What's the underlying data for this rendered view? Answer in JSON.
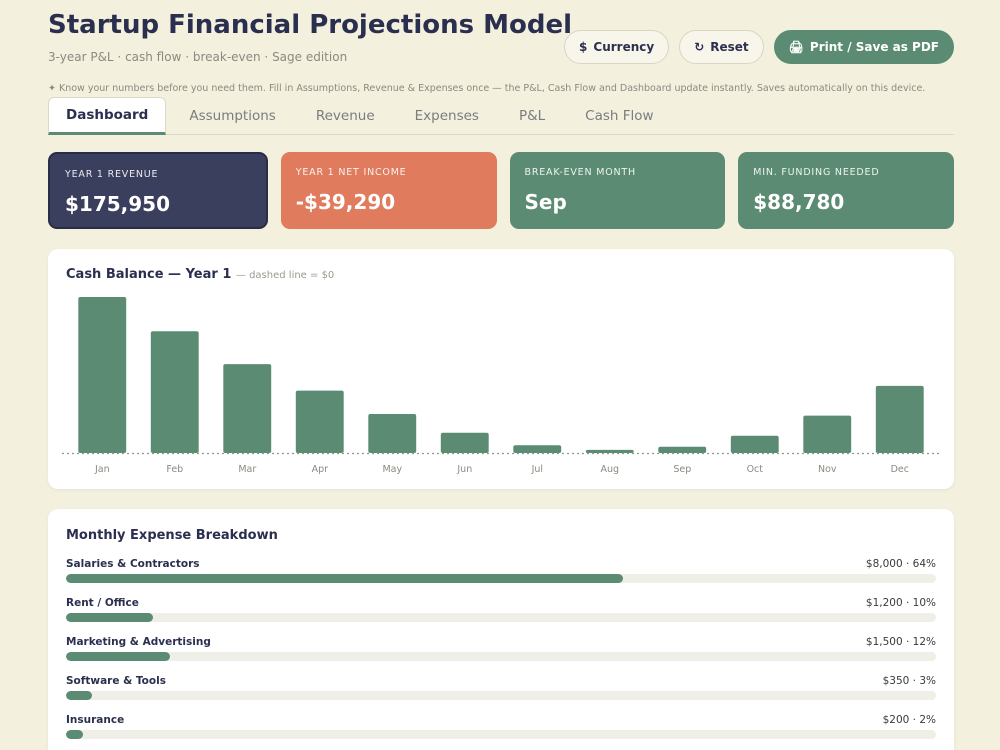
{
  "header": {
    "title": "Startup Financial Projections Model",
    "subtitle": "3-year P&L · cash flow · break-even  ·  Sage edition",
    "tagline": "✦ Know your numbers before you need them. Fill in Assumptions, Revenue & Expenses once — the P&L, Cash Flow and Dashboard update instantly. Saves automatically on this device."
  },
  "toolbar": {
    "currency_label": "Currency",
    "currency_icon": "$",
    "reset_label": "Reset",
    "reset_icon": "↻",
    "print_label": "Print / Save as PDF",
    "print_icon": "🖨"
  },
  "tabs": [
    {
      "label": "Dashboard",
      "active": true
    },
    {
      "label": "Assumptions"
    },
    {
      "label": "Revenue"
    },
    {
      "label": "Expenses"
    },
    {
      "label": "P&L"
    },
    {
      "label": "Cash Flow"
    }
  ],
  "kpis": [
    {
      "label": "YEAR 1 REVENUE",
      "value": "$175,950"
    },
    {
      "label": "YEAR 1 NET INCOME",
      "value": "-$39,290"
    },
    {
      "label": "BREAK-EVEN MONTH",
      "value": "Sep"
    },
    {
      "label": "MIN. FUNDING NEEDED",
      "value": "$88,780"
    }
  ],
  "chart_data": {
    "type": "bar",
    "title": "Cash Balance — Year 1",
    "note": "— dashed line = $0",
    "categories": [
      "Jan",
      "Feb",
      "Mar",
      "Apr",
      "May",
      "Jun",
      "Jul",
      "Aug",
      "Sep",
      "Oct",
      "Nov",
      "Dec"
    ],
    "values": [
      100,
      78,
      57,
      40,
      25,
      13,
      5,
      2,
      4,
      11,
      24,
      43
    ],
    "ylim": [
      0,
      100
    ],
    "grid": false,
    "bar_color": "#5b8c73"
  },
  "expenses": {
    "title": "Monthly Expense Breakdown",
    "items": [
      {
        "name": "Salaries & Contractors",
        "amount": "$8,000 · 64%",
        "pct": 64
      },
      {
        "name": "Rent / Office",
        "amount": "$1,200 · 10%",
        "pct": 10
      },
      {
        "name": "Marketing & Advertising",
        "amount": "$1,500 · 12%",
        "pct": 12
      },
      {
        "name": "Software & Tools",
        "amount": "$350 · 3%",
        "pct": 3
      },
      {
        "name": "Insurance",
        "amount": "$200 · 2%",
        "pct": 2
      }
    ]
  },
  "colors": {
    "navy": "#3b3f5e",
    "coral": "#e07b5d",
    "green": "#5b8c73",
    "background": "#f3f0dd"
  }
}
